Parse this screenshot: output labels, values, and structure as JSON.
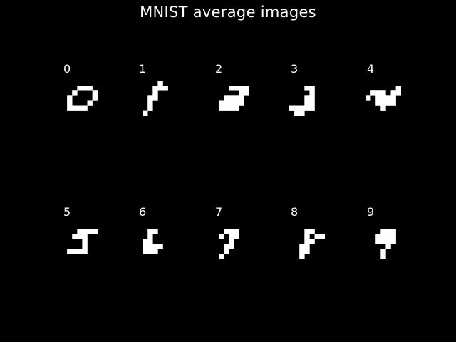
{
  "chart_data": {
    "type": "image-grid",
    "title": "MNIST average images",
    "pixel_color": "#ffffff",
    "background_color": "#000000",
    "panels": [
      {
        "label": "0",
        "pixels": [
          [
            3,
            1
          ],
          [
            4,
            1
          ],
          [
            5,
            1
          ],
          [
            2,
            2
          ],
          [
            6,
            2
          ],
          [
            1,
            3
          ],
          [
            6,
            3
          ],
          [
            1,
            4
          ],
          [
            5,
            4
          ],
          [
            1,
            5
          ],
          [
            2,
            5
          ],
          [
            3,
            5
          ],
          [
            4,
            5
          ]
        ]
      },
      {
        "label": "1",
        "pixels": [
          [
            4,
            0
          ],
          [
            3,
            1
          ],
          [
            4,
            1
          ],
          [
            5,
            1
          ],
          [
            3,
            2
          ],
          [
            2,
            3
          ],
          [
            3,
            3
          ],
          [
            2,
            4
          ],
          [
            2,
            5
          ],
          [
            1,
            6
          ]
        ]
      },
      {
        "label": "2",
        "pixels": [
          [
            3,
            1
          ],
          [
            4,
            1
          ],
          [
            5,
            1
          ],
          [
            6,
            1
          ],
          [
            5,
            2
          ],
          [
            6,
            2
          ],
          [
            2,
            3
          ],
          [
            3,
            3
          ],
          [
            4,
            3
          ],
          [
            5,
            3
          ],
          [
            1,
            4
          ],
          [
            2,
            4
          ],
          [
            3,
            4
          ],
          [
            4,
            4
          ],
          [
            5,
            4
          ],
          [
            1,
            5
          ],
          [
            2,
            5
          ],
          [
            3,
            5
          ],
          [
            4,
            5
          ]
        ]
      },
      {
        "label": "3",
        "pixels": [
          [
            3,
            1
          ],
          [
            4,
            1
          ],
          [
            4,
            2
          ],
          [
            3,
            3
          ],
          [
            4,
            3
          ],
          [
            3,
            4
          ],
          [
            4,
            4
          ],
          [
            0,
            5
          ],
          [
            1,
            5
          ],
          [
            2,
            5
          ],
          [
            3,
            5
          ],
          [
            4,
            5
          ],
          [
            1,
            6
          ],
          [
            2,
            6
          ]
        ]
      },
      {
        "label": "4",
        "pixels": [
          [
            6,
            1
          ],
          [
            1,
            2
          ],
          [
            2,
            2
          ],
          [
            3,
            2
          ],
          [
            5,
            2
          ],
          [
            6,
            2
          ],
          [
            0,
            3
          ],
          [
            2,
            3
          ],
          [
            3,
            3
          ],
          [
            4,
            3
          ],
          [
            5,
            3
          ],
          [
            2,
            4
          ],
          [
            3,
            4
          ],
          [
            4,
            4
          ],
          [
            5,
            4
          ],
          [
            3,
            5
          ]
        ]
      },
      {
        "label": "5",
        "pixels": [
          [
            3,
            1
          ],
          [
            4,
            1
          ],
          [
            5,
            1
          ],
          [
            6,
            1
          ],
          [
            2,
            2
          ],
          [
            3,
            2
          ],
          [
            4,
            2
          ],
          [
            4,
            3
          ],
          [
            4,
            4
          ],
          [
            1,
            5
          ],
          [
            2,
            5
          ],
          [
            3,
            5
          ],
          [
            4,
            5
          ]
        ]
      },
      {
        "label": "6",
        "pixels": [
          [
            2,
            1
          ],
          [
            3,
            1
          ],
          [
            2,
            2
          ],
          [
            1,
            3
          ],
          [
            2,
            3
          ],
          [
            1,
            4
          ],
          [
            2,
            4
          ],
          [
            3,
            4
          ],
          [
            4,
            4
          ],
          [
            1,
            5
          ],
          [
            2,
            5
          ],
          [
            3,
            5
          ]
        ]
      },
      {
        "label": "7",
        "pixels": [
          [
            2,
            1
          ],
          [
            3,
            1
          ],
          [
            4,
            1
          ],
          [
            1,
            2
          ],
          [
            3,
            2
          ],
          [
            4,
            2
          ],
          [
            3,
            3
          ],
          [
            2,
            4
          ],
          [
            3,
            4
          ],
          [
            2,
            5
          ],
          [
            1,
            6
          ]
        ]
      },
      {
        "label": "8",
        "pixels": [
          [
            3,
            1
          ],
          [
            4,
            1
          ],
          [
            3,
            2
          ],
          [
            5,
            2
          ],
          [
            6,
            2
          ],
          [
            3,
            3
          ],
          [
            4,
            3
          ],
          [
            2,
            4
          ],
          [
            3,
            4
          ],
          [
            2,
            5
          ],
          [
            3,
            5
          ],
          [
            2,
            6
          ]
        ]
      },
      {
        "label": "9",
        "pixels": [
          [
            3,
            1
          ],
          [
            4,
            1
          ],
          [
            5,
            1
          ],
          [
            2,
            2
          ],
          [
            3,
            2
          ],
          [
            4,
            2
          ],
          [
            5,
            2
          ],
          [
            2,
            3
          ],
          [
            3,
            3
          ],
          [
            4,
            3
          ],
          [
            5,
            3
          ],
          [
            4,
            4
          ],
          [
            3,
            5
          ],
          [
            3,
            6
          ]
        ]
      }
    ]
  }
}
